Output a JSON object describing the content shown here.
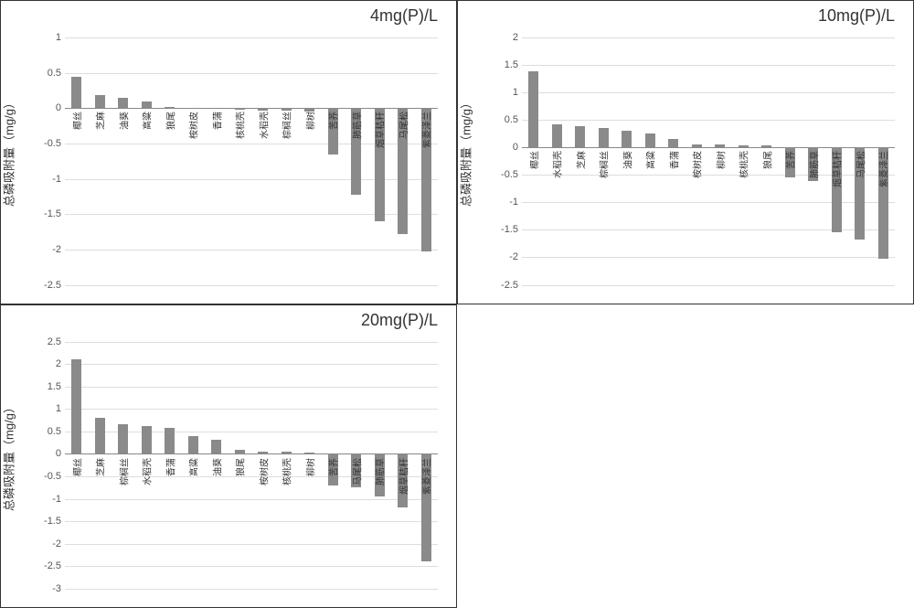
{
  "figure": {
    "layout": "2x2",
    "background_color": "#ffffff",
    "border_color": "#333333",
    "font_family": "sans-serif",
    "title_fontsize": 18,
    "ylabel_fontsize": 13,
    "tick_fontsize": 11,
    "catlabel_fontsize": 10,
    "bar_color": "#8a8a8a",
    "grid_color": "#dddddd",
    "axis_color": "#888888"
  },
  "panels": [
    {
      "title": "4mg(P)/L",
      "ylabel": "总磷吸附量（mg/g）",
      "type": "bar",
      "ylim": [
        -2.5,
        1
      ],
      "ytick_step": 0.5,
      "bar_width": 0.45,
      "categories": [
        "椰丝",
        "芝麻",
        "油葵",
        "高粱",
        "狼尾",
        "桉树皮",
        "香蒲",
        "核桃壳",
        "水稻壳",
        "棕榈丝",
        "柳树",
        "苦荞",
        "肺筋草",
        "烟草秸秆",
        "马尾松",
        "紫菱泽兰"
      ],
      "values": [
        0.45,
        0.18,
        0.15,
        0.09,
        0.02,
        0.01,
        0.0,
        -0.02,
        -0.03,
        -0.04,
        -0.05,
        -0.65,
        -1.22,
        -1.6,
        -1.78,
        -2.03
      ]
    },
    {
      "title": "10mg(P)/L",
      "ylabel": "总磷吸附量（mg/g）",
      "type": "bar",
      "ylim": [
        -2.5,
        2
      ],
      "ytick_step": 0.5,
      "bar_width": 0.45,
      "categories": [
        "椰丝",
        "水稻壳",
        "芝麻",
        "棕榈丝",
        "油葵",
        "高粱",
        "香蒲",
        "桉树皮",
        "柳树",
        "核桃壳",
        "狼尾",
        "苦荞",
        "肺筋草",
        "烟草秸秆",
        "马尾松",
        "紫菱泽兰"
      ],
      "values": [
        1.38,
        0.42,
        0.38,
        0.35,
        0.3,
        0.26,
        0.15,
        0.06,
        0.05,
        0.04,
        0.03,
        -0.55,
        -0.62,
        -1.55,
        -1.68,
        -2.03
      ]
    },
    {
      "title": "20mg(P)/L",
      "ylabel": "总磷吸附量（mg/g）",
      "type": "bar",
      "ylim": [
        -3,
        2.5
      ],
      "ytick_step": 0.5,
      "bar_width": 0.45,
      "categories": [
        "椰丝",
        "芝麻",
        "棕榈丝",
        "水稻壳",
        "香蒲",
        "高粱",
        "油葵",
        "狼尾",
        "桉树皮",
        "核桃壳",
        "柳树",
        "苦荞",
        "马尾松",
        "肺筋草",
        "烟草秸秆",
        "紫菱泽兰"
      ],
      "values": [
        2.1,
        0.8,
        0.65,
        0.62,
        0.58,
        0.4,
        0.32,
        0.1,
        0.06,
        0.05,
        0.03,
        -0.7,
        -0.75,
        -0.95,
        -1.2,
        -2.4
      ]
    }
  ]
}
